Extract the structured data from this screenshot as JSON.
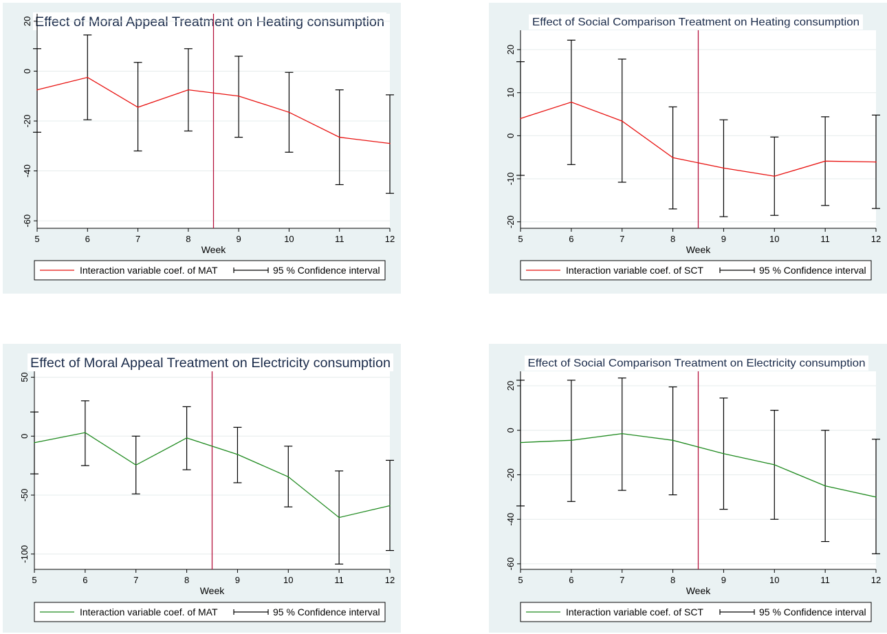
{
  "chart_data": [
    {
      "type": "line",
      "title": "Effect of Moral Appeal Treatment on Heating consumption",
      "xlabel": "Week",
      "ylabel": "",
      "x": [
        5,
        6,
        7,
        8,
        9,
        10,
        11,
        12
      ],
      "xticks": [
        "5",
        "6",
        "7",
        "8",
        "9",
        "10",
        "11",
        "12"
      ],
      "xlim": [
        5,
        12
      ],
      "ylim": [
        -63,
        23
      ],
      "yticks": [
        20,
        0,
        -20,
        -40,
        -60
      ],
      "ytick_labels": [
        "20",
        "0",
        "-20",
        "-40",
        "-60"
      ],
      "grid": true,
      "vline": 8.5,
      "vline_color": "#b5133d",
      "line_color": "#e8110f",
      "series": [
        {
          "name": "Interaction variable coef. of MAT",
          "values": [
            -7.5,
            -2.5,
            -14.5,
            -7.5,
            -10,
            -16.5,
            -26.5,
            -29
          ],
          "ci_upper": [
            9,
            14.5,
            3.5,
            9,
            6,
            -0.5,
            -7.5,
            -9.5
          ],
          "ci_lower": [
            -24.5,
            -19.5,
            -32,
            -24,
            -26.5,
            -32.5,
            -45.5,
            -49
          ]
        }
      ],
      "legend": [
        {
          "label": "Interaction variable coef. of MAT",
          "kind": "line"
        },
        {
          "label": "95 % Confidence interval",
          "kind": "ci"
        }
      ],
      "legend_position": "bottom"
    },
    {
      "type": "line",
      "title": "Effect of Social Comparison Treatment on Heating consumption",
      "xlabel": "Week",
      "ylabel": "",
      "x": [
        5,
        6,
        7,
        8,
        9,
        10,
        11,
        12
      ],
      "xticks": [
        "5",
        "6",
        "7",
        "8",
        "9",
        "10",
        "11",
        "12"
      ],
      "xlim": [
        5,
        12
      ],
      "ylim": [
        -21.5,
        24.5
      ],
      "yticks": [
        20,
        10,
        0,
        -10,
        -20
      ],
      "ytick_labels": [
        "20",
        "10",
        "0",
        "-10",
        "-20"
      ],
      "grid": true,
      "vline": 8.5,
      "vline_color": "#b5133d",
      "line_color": "#e8110f",
      "series": [
        {
          "name": "Interaction variable coef. of SCT",
          "values": [
            4,
            7.8,
            3.4,
            -5.1,
            -7.5,
            -9.4,
            -5.9,
            -6.1
          ],
          "ci_upper": [
            17.2,
            22.2,
            17.8,
            6.7,
            3.7,
            -0.3,
            4.4,
            4.8
          ],
          "ci_lower": [
            -9.2,
            -6.7,
            -10.8,
            -17,
            -18.8,
            -18.5,
            -16.2,
            -16.9
          ]
        }
      ],
      "legend": [
        {
          "label": "Interaction variable coef. of SCT",
          "kind": "line"
        },
        {
          "label": "95 % Confidence interval",
          "kind": "ci"
        }
      ],
      "legend_position": "bottom"
    },
    {
      "type": "line",
      "title": "Effect of Moral Appeal Treatment on Electricity consumption",
      "xlabel": "Week",
      "ylabel": "",
      "x": [
        5,
        6,
        7,
        8,
        9,
        10,
        11,
        12
      ],
      "xticks": [
        "5",
        "6",
        "7",
        "8",
        "9",
        "10",
        "11",
        "12"
      ],
      "xlim": [
        5,
        12
      ],
      "ylim": [
        -113,
        55
      ],
      "yticks": [
        50,
        0,
        -50,
        -100
      ],
      "ytick_labels": [
        "50",
        "0",
        "-50",
        "-100"
      ],
      "grid": true,
      "vline": 8.5,
      "vline_color": "#b5133d",
      "line_color": "#1f8a1f",
      "series": [
        {
          "name": "Interaction variable coef. of MAT",
          "values": [
            -5.5,
            3,
            -24.5,
            -1.5,
            -15.5,
            -34.5,
            -69,
            -59
          ],
          "ci_upper": [
            20.5,
            30,
            0,
            25,
            7.5,
            -8.5,
            -29.5,
            -20.5
          ],
          "ci_lower": [
            -32,
            -25,
            -49,
            -28.5,
            -39.5,
            -60,
            -108.5,
            -97
          ]
        }
      ],
      "legend": [
        {
          "label": "Interaction variable coef. of MAT",
          "kind": "line"
        },
        {
          "label": "95 % Confidence interval",
          "kind": "ci"
        }
      ],
      "legend_position": "bottom"
    },
    {
      "type": "line",
      "title": "Effect of Social Comparison Treatment on Electricity consumption",
      "xlabel": "Week",
      "ylabel": "",
      "x": [
        5,
        6,
        7,
        8,
        9,
        10,
        11,
        12
      ],
      "xticks": [
        "5",
        "6",
        "7",
        "8",
        "9",
        "10",
        "11",
        "12"
      ],
      "xlim": [
        5,
        12
      ],
      "ylim": [
        -62.5,
        26.5
      ],
      "yticks": [
        20,
        0,
        -20,
        -40,
        -60
      ],
      "ytick_labels": [
        "20",
        "0",
        "-20",
        "-40",
        "-60"
      ],
      "grid": true,
      "vline": 8.5,
      "vline_color": "#b5133d",
      "line_color": "#1f8a1f",
      "series": [
        {
          "name": "Interaction variable coef. of SCT",
          "values": [
            -5.5,
            -4.5,
            -1.5,
            -4.5,
            -10.5,
            -15.5,
            -25,
            -30
          ],
          "ci_upper": [
            22.5,
            22.5,
            23.5,
            19.5,
            14.5,
            9,
            0,
            -4
          ],
          "ci_lower": [
            -34,
            -32,
            -27,
            -29,
            -35.5,
            -40,
            -50,
            -55.5
          ]
        }
      ],
      "legend": [
        {
          "label": "Interaction variable coef. of SCT",
          "kind": "line"
        },
        {
          "label": "95 % Confidence interval",
          "kind": "ci"
        }
      ],
      "legend_position": "bottom"
    }
  ]
}
